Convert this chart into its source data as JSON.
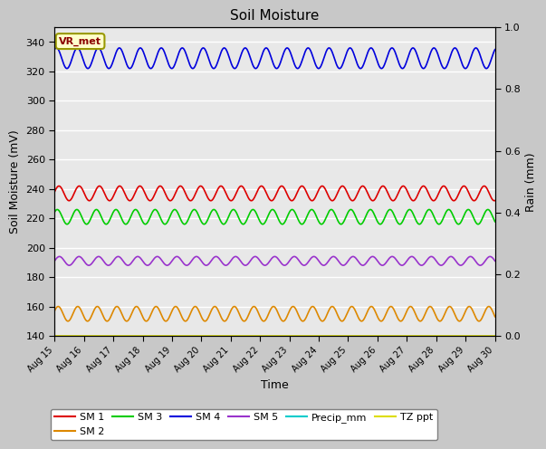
{
  "title": "Soil Moisture",
  "xlabel": "Time",
  "ylabel_left": "Soil Moisture (mV)",
  "ylabel_right": "Rain (mm)",
  "ylim_left": [
    140,
    350
  ],
  "ylim_right": [
    0.0,
    1.0
  ],
  "yticks_left": [
    140,
    160,
    180,
    200,
    220,
    240,
    260,
    280,
    300,
    320,
    340
  ],
  "yticks_right": [
    0.0,
    0.2,
    0.4,
    0.6,
    0.8,
    1.0
  ],
  "fig_bg": "#c8c8c8",
  "plot_bg": "#e8e8e8",
  "vr_met_label": "VR_met",
  "vr_met_bg": "#ffffcc",
  "vr_met_border": "#999900",
  "vr_met_text_color": "#8b0000",
  "series": {
    "SM1": {
      "color": "#dd0000",
      "base": 237,
      "amp": 5,
      "freq": 1.45,
      "phase": 0.2
    },
    "SM2": {
      "color": "#dd8800",
      "base": 155,
      "amp": 5,
      "freq": 1.5,
      "phase": 0.4
    },
    "SM3": {
      "color": "#00cc00",
      "base": 221,
      "amp": 5,
      "freq": 1.5,
      "phase": 0.7
    },
    "SM4": {
      "color": "#0000dd",
      "base": 329,
      "amp": 7,
      "freq": 1.4,
      "phase": 1.0
    },
    "SM5": {
      "color": "#9933cc",
      "base": 191,
      "amp": 3,
      "freq": 1.5,
      "phase": 0.0
    },
    "TZ_ppt": {
      "color": "#dddd00",
      "base": 140,
      "amp": 0,
      "freq": 0,
      "phase": 0
    }
  },
  "legend_entries": [
    {
      "label": "SM 1",
      "color": "#dd0000"
    },
    {
      "label": "SM 2",
      "color": "#dd8800"
    },
    {
      "label": "SM 3",
      "color": "#00cc00"
    },
    {
      "label": "SM 4",
      "color": "#0000dd"
    },
    {
      "label": "SM 5",
      "color": "#9933cc"
    },
    {
      "label": "Precip_mm",
      "color": "#00cccc"
    },
    {
      "label": "TZ ppt",
      "color": "#dddd00"
    }
  ]
}
